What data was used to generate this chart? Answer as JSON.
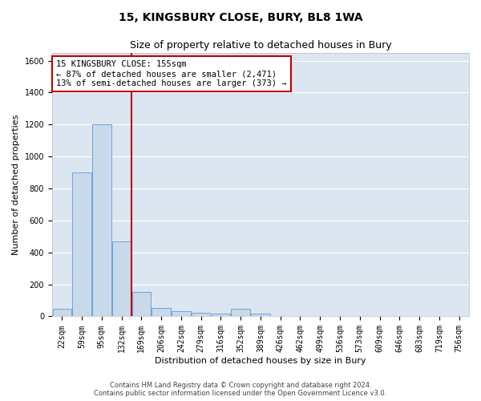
{
  "title": "15, KINGSBURY CLOSE, BURY, BL8 1WA",
  "subtitle": "Size of property relative to detached houses in Bury",
  "xlabel": "Distribution of detached houses by size in Bury",
  "ylabel": "Number of detached properties",
  "footer_line1": "Contains HM Land Registry data © Crown copyright and database right 2024.",
  "footer_line2": "Contains public sector information licensed under the Open Government Licence v3.0.",
  "bin_labels": [
    "22sqm",
    "59sqm",
    "95sqm",
    "132sqm",
    "169sqm",
    "206sqm",
    "242sqm",
    "279sqm",
    "316sqm",
    "352sqm",
    "389sqm",
    "426sqm",
    "462sqm",
    "499sqm",
    "536sqm",
    "573sqm",
    "609sqm",
    "646sqm",
    "683sqm",
    "719sqm",
    "756sqm"
  ],
  "bar_values": [
    50,
    900,
    1200,
    470,
    155,
    55,
    30,
    20,
    15,
    50,
    15,
    0,
    0,
    0,
    0,
    0,
    0,
    0,
    0,
    0,
    0
  ],
  "bar_color": "#c8d9ea",
  "bar_edge_color": "#5b9bd5",
  "background_color": "#dce6f1",
  "grid_color": "#ffffff",
  "fig_background_color": "#ffffff",
  "ylim": [
    0,
    1650
  ],
  "yticks": [
    0,
    200,
    400,
    600,
    800,
    1000,
    1200,
    1400,
    1600
  ],
  "red_line_index": 4,
  "red_line_color": "#c00000",
  "annotation_text_line1": "15 KINGSBURY CLOSE: 155sqm",
  "annotation_text_line2": "← 87% of detached houses are smaller (2,471)",
  "annotation_text_line3": "13% of semi-detached houses are larger (373) →",
  "annotation_box_color": "#ffffff",
  "annotation_box_edge_color": "#c00000",
  "title_fontsize": 10,
  "subtitle_fontsize": 9,
  "axis_label_fontsize": 8,
  "tick_fontsize": 7,
  "annotation_fontsize": 7.5,
  "footer_fontsize": 6
}
